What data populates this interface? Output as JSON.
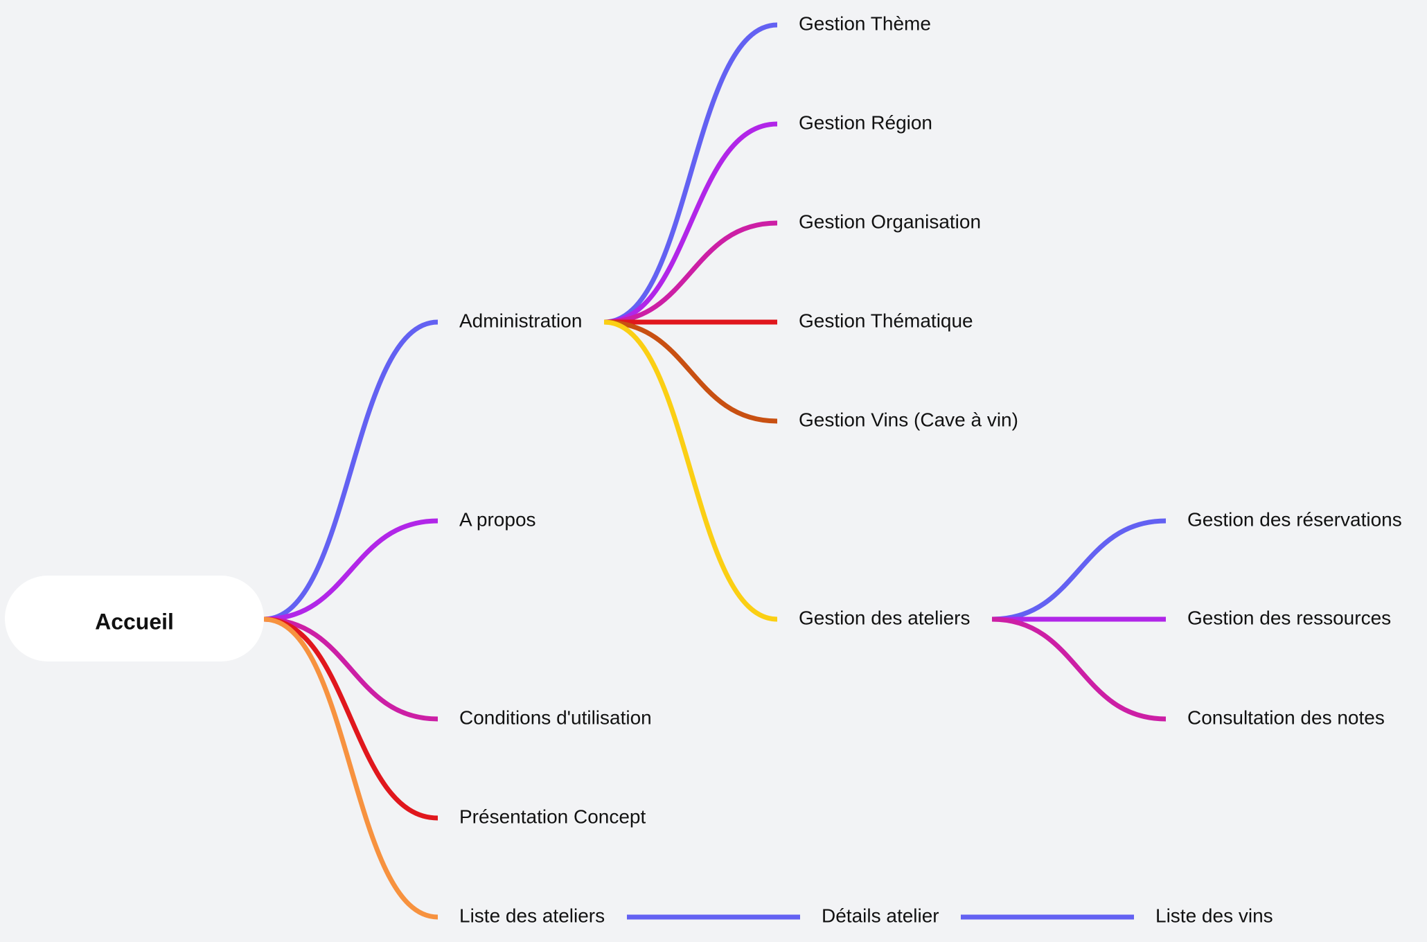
{
  "mindmap": {
    "root": "Accueil",
    "nodes": [
      {
        "id": "admin",
        "label": "Administration",
        "parent": "root",
        "color": "#6361f2"
      },
      {
        "id": "apropos",
        "label": "A propos",
        "parent": "root",
        "color": "#b126e8"
      },
      {
        "id": "conditions",
        "label": "Conditions d'utilisation",
        "parent": "root",
        "color": "#cc1fa5"
      },
      {
        "id": "presentation",
        "label": "Présentation Concept",
        "parent": "root",
        "color": "#e0171d"
      },
      {
        "id": "liste-ateliers",
        "label": "Liste des ateliers",
        "parent": "root",
        "color": "#f7923f"
      },
      {
        "id": "g-theme",
        "label": "Gestion Thème",
        "parent": "admin",
        "color": "#6361f2"
      },
      {
        "id": "g-region",
        "label": "Gestion Région",
        "parent": "admin",
        "color": "#b126e8"
      },
      {
        "id": "g-organisation",
        "label": "Gestion Organisation",
        "parent": "admin",
        "color": "#cc1fa5"
      },
      {
        "id": "g-thematique",
        "label": "Gestion Thématique",
        "parent": "admin",
        "color": "#e0171d"
      },
      {
        "id": "g-vins",
        "label": "Gestion Vins (Cave à vin)",
        "parent": "admin",
        "color": "#c85012"
      },
      {
        "id": "g-ateliers",
        "label": "Gestion des ateliers",
        "parent": "admin",
        "color": "#fbcf14"
      },
      {
        "id": "g-reservations",
        "label": "Gestion des réservations",
        "parent": "g-ateliers",
        "color": "#6361f2"
      },
      {
        "id": "g-ressources",
        "label": "Gestion des ressources",
        "parent": "g-ateliers",
        "color": "#b126e8"
      },
      {
        "id": "c-notes",
        "label": "Consultation des notes",
        "parent": "g-ateliers",
        "color": "#cc1fa5"
      },
      {
        "id": "details-atelier",
        "label": "Détails atelier",
        "parent": "liste-ateliers",
        "color": "#6361f2"
      },
      {
        "id": "liste-vins",
        "label": "Liste des vins",
        "parent": "details-atelier",
        "color": "#6361f2"
      }
    ]
  }
}
